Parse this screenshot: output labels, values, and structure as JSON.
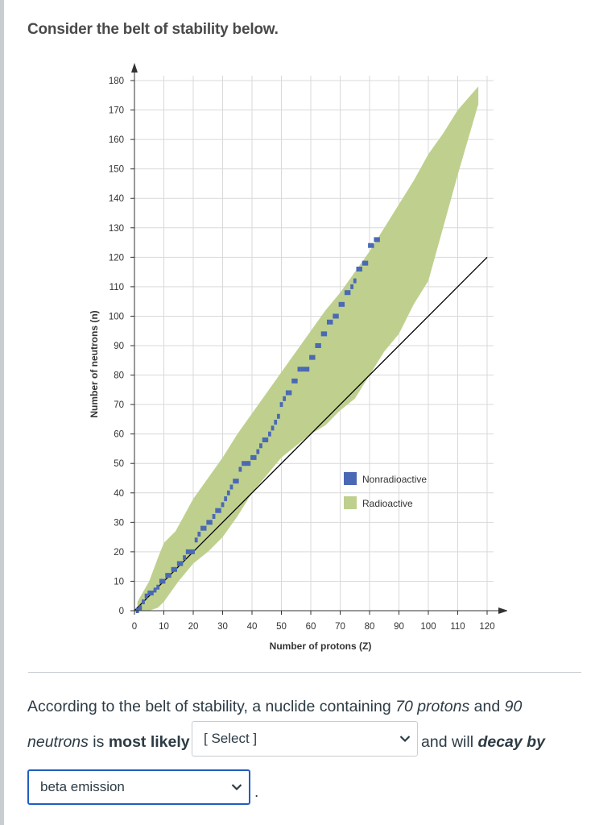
{
  "question": {
    "intro": "Consider the belt of stability below.",
    "line1_prefix": "According to the belt of stability, a nuclide containing ",
    "protons_phrase": "70 protons",
    "line1_and": " and ",
    "neutrons_num": "90",
    "line2_word": "neutrons",
    "line2_is": " is ",
    "most_likely": "most likely",
    "after_select": "and will ",
    "decay_by": "decay by",
    "period": "."
  },
  "select1": {
    "label": "[ Select ]"
  },
  "select2": {
    "label": "beta emission"
  },
  "chart_data": {
    "type": "area",
    "title": "",
    "xlabel": "Number of protons (Z)",
    "ylabel": "Number of neutrons (n)",
    "xlim": [
      0,
      120
    ],
    "ylim": [
      0,
      180
    ],
    "xticks": [
      0,
      10,
      20,
      30,
      40,
      50,
      60,
      70,
      80,
      90,
      100,
      110,
      120
    ],
    "yticks": [
      0,
      10,
      20,
      30,
      40,
      50,
      60,
      70,
      80,
      90,
      100,
      110,
      120,
      130,
      140,
      150,
      160,
      170,
      180
    ],
    "grid": true,
    "legend": [
      {
        "name": "Nonradioactive",
        "color": "#4a69b4"
      },
      {
        "name": "Radioactive",
        "color": "#bfd08e"
      }
    ],
    "series": [
      {
        "name": "Radioactive",
        "color": "#bfd08e",
        "upper": [
          [
            1,
            3
          ],
          [
            5,
            10
          ],
          [
            8,
            18
          ],
          [
            10,
            23
          ],
          [
            14,
            27
          ],
          [
            20,
            38
          ],
          [
            25,
            45
          ],
          [
            30,
            52
          ],
          [
            35,
            60
          ],
          [
            40,
            67
          ],
          [
            45,
            74
          ],
          [
            50,
            81
          ],
          [
            55,
            88
          ],
          [
            60,
            95
          ],
          [
            65,
            102
          ],
          [
            70,
            108
          ],
          [
            75,
            115
          ],
          [
            80,
            122
          ],
          [
            85,
            130
          ],
          [
            90,
            138
          ],
          [
            95,
            146
          ],
          [
            100,
            155
          ],
          [
            105,
            162
          ],
          [
            110,
            170
          ],
          [
            117,
            178
          ]
        ],
        "lower": [
          [
            1,
            0
          ],
          [
            5,
            0
          ],
          [
            8,
            1
          ],
          [
            10,
            3
          ],
          [
            15,
            10
          ],
          [
            20,
            16
          ],
          [
            25,
            20
          ],
          [
            30,
            25
          ],
          [
            35,
            32
          ],
          [
            40,
            40
          ],
          [
            45,
            46
          ],
          [
            50,
            52
          ],
          [
            55,
            56
          ],
          [
            60,
            60
          ],
          [
            65,
            63
          ],
          [
            70,
            68
          ],
          [
            75,
            72
          ],
          [
            80,
            80
          ],
          [
            85,
            88
          ],
          [
            90,
            94
          ],
          [
            95,
            104
          ],
          [
            100,
            112
          ],
          [
            105,
            130
          ],
          [
            110,
            148
          ],
          [
            117,
            172
          ]
        ]
      },
      {
        "name": "Nonradioactive",
        "color": "#4a69b4",
        "points": [
          [
            1,
            0
          ],
          [
            2,
            1
          ],
          [
            3,
            3
          ],
          [
            4,
            5
          ],
          [
            5,
            6
          ],
          [
            6,
            6
          ],
          [
            7,
            7
          ],
          [
            8,
            8
          ],
          [
            9,
            10
          ],
          [
            10,
            10
          ],
          [
            11,
            12
          ],
          [
            12,
            12
          ],
          [
            13,
            14
          ],
          [
            14,
            14
          ],
          [
            15,
            16
          ],
          [
            16,
            16
          ],
          [
            17,
            18
          ],
          [
            18,
            20
          ],
          [
            19,
            20
          ],
          [
            20,
            20
          ],
          [
            21,
            24
          ],
          [
            22,
            26
          ],
          [
            23,
            28
          ],
          [
            24,
            28
          ],
          [
            25,
            30
          ],
          [
            26,
            30
          ],
          [
            27,
            32
          ],
          [
            28,
            34
          ],
          [
            29,
            34
          ],
          [
            30,
            36
          ],
          [
            31,
            38
          ],
          [
            32,
            40
          ],
          [
            33,
            42
          ],
          [
            34,
            44
          ],
          [
            35,
            44
          ],
          [
            36,
            48
          ],
          [
            37,
            50
          ],
          [
            38,
            50
          ],
          [
            39,
            50
          ],
          [
            40,
            52
          ],
          [
            41,
            52
          ],
          [
            42,
            54
          ],
          [
            43,
            56
          ],
          [
            44,
            58
          ],
          [
            45,
            58
          ],
          [
            46,
            60
          ],
          [
            47,
            62
          ],
          [
            48,
            64
          ],
          [
            49,
            66
          ],
          [
            50,
            70
          ],
          [
            51,
            72
          ],
          [
            52,
            74
          ],
          [
            53,
            74
          ],
          [
            54,
            78
          ],
          [
            55,
            78
          ],
          [
            56,
            82
          ],
          [
            57,
            82
          ],
          [
            58,
            82
          ],
          [
            59,
            82
          ],
          [
            60,
            86
          ],
          [
            61,
            86
          ],
          [
            62,
            90
          ],
          [
            63,
            90
          ],
          [
            64,
            94
          ],
          [
            65,
            94
          ],
          [
            66,
            98
          ],
          [
            67,
            98
          ],
          [
            68,
            100
          ],
          [
            69,
            100
          ],
          [
            70,
            104
          ],
          [
            71,
            104
          ],
          [
            72,
            108
          ],
          [
            73,
            108
          ],
          [
            74,
            110
          ],
          [
            75,
            112
          ],
          [
            76,
            116
          ],
          [
            77,
            116
          ],
          [
            78,
            118
          ],
          [
            79,
            118
          ],
          [
            80,
            124
          ],
          [
            81,
            124
          ],
          [
            82,
            126
          ],
          [
            83,
            126
          ]
        ]
      },
      {
        "name": "N = Z",
        "color": "#000000",
        "line": [
          [
            0,
            0
          ],
          [
            120,
            120
          ]
        ]
      }
    ]
  }
}
